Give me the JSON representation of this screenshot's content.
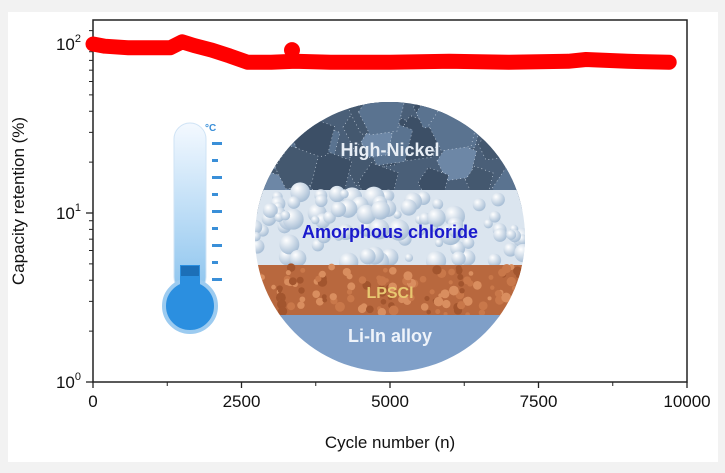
{
  "chart_data": {
    "type": "line",
    "title": "",
    "xlabel": "Cycle number (n)",
    "ylabel": "Capacity retention (%)",
    "xlim": [
      0,
      10000
    ],
    "ylim": [
      1,
      140
    ],
    "yscale": "log",
    "grid": false,
    "x_ticks": [
      "0",
      "2500",
      "5000",
      "7500",
      "10000"
    ],
    "y_ticks": [
      {
        "base": "10",
        "exp": "0"
      },
      {
        "base": "10",
        "exp": "1"
      },
      {
        "base": "10",
        "exp": "2"
      }
    ],
    "series": [
      {
        "color": "#ff0000",
        "x": [
          0,
          200,
          600,
          1000,
          1300,
          1500,
          1700,
          2000,
          2300,
          2600,
          3000,
          3400,
          4000,
          5000,
          6000,
          7000,
          8000,
          8300,
          9000,
          9700
        ],
        "y": [
          100,
          97,
          95,
          95,
          95,
          103,
          98,
          92,
          85,
          78,
          78,
          79,
          78,
          78,
          79,
          78,
          79,
          81,
          79,
          78
        ]
      }
    ]
  },
  "illustration": {
    "cathode_label": "High-Nickel",
    "electrolyte_label": "Amorphous chloride",
    "separator_label": "LPSCl",
    "anode_label": "Li-In alloy",
    "thermometer_unit": "°C",
    "colors": {
      "cathode": "#4f6680",
      "electrolyte_text": "#1a1acc",
      "lpscl": "#b8683e",
      "anode": "#7f9fc8"
    }
  }
}
